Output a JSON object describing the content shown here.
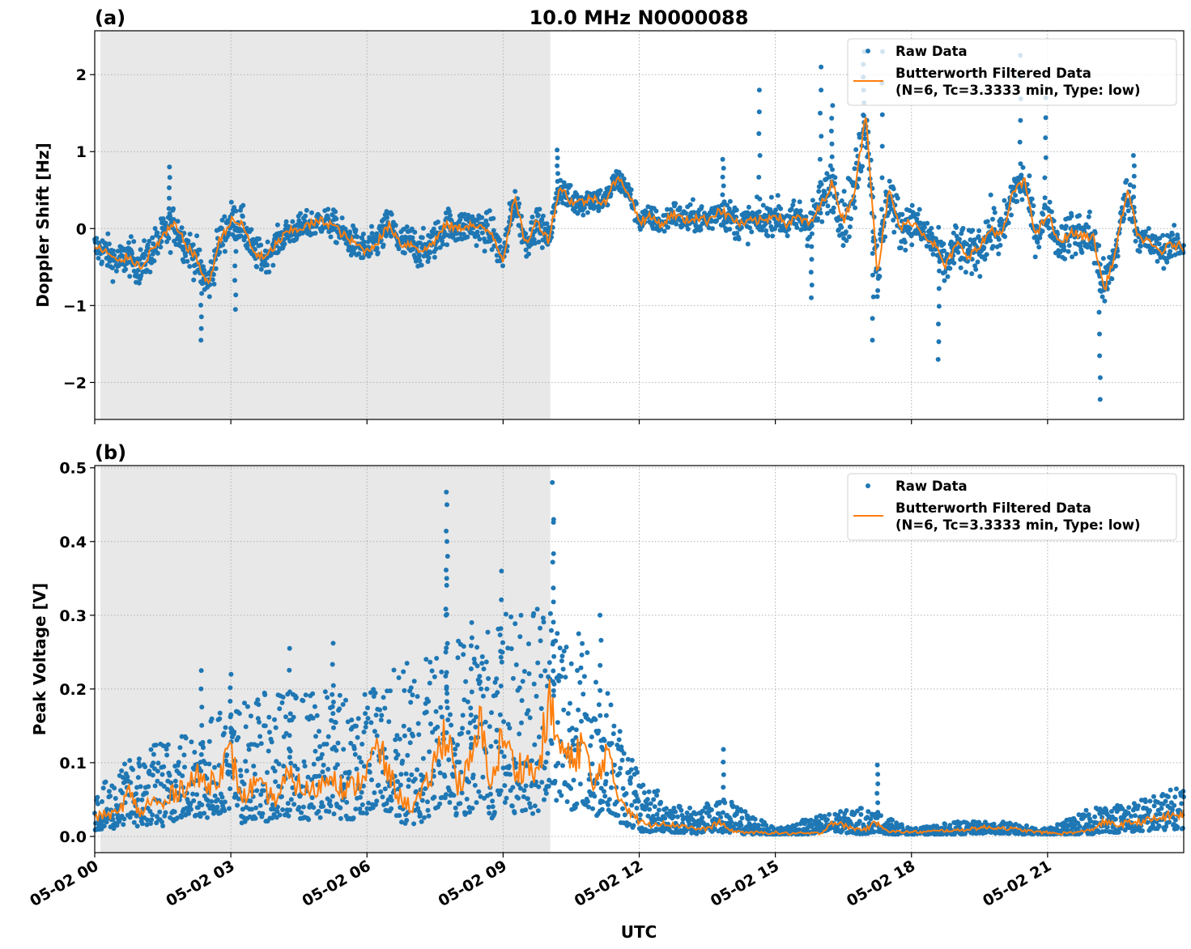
{
  "chart_data": [
    {
      "panel_label": "(a)",
      "title": "10.0 MHz N0000088",
      "type": "scatter+line",
      "xlabel": "",
      "ylabel": "Doppler Shift [Hz]",
      "x_unit": "hours UTC on 05-02",
      "xlim": [
        0,
        24
      ],
      "ylim": [
        -2.48,
        2.57
      ],
      "yticks": [
        -2,
        -1,
        0,
        1,
        2
      ],
      "ytick_labels": [
        "−2",
        "−1",
        "0",
        "1",
        "2"
      ],
      "grid": true,
      "legend_placement": "top-right",
      "shaded_region": {
        "x_start": 0.125,
        "x_end": 10.04,
        "color": "#e8e8e8"
      },
      "series": [
        {
          "name": "Raw Data",
          "kind": "scatter",
          "color": "#1f77b4",
          "spread_hourly": [
            0.3,
            0.35,
            0.35,
            0.35,
            0.25,
            0.25,
            0.3,
            0.35,
            0.3,
            0.35,
            0.25,
            0.25,
            0.2,
            0.25,
            0.3,
            0.3,
            0.4,
            0.6,
            0.35,
            0.4,
            0.45,
            0.3,
            0.5,
            0.3,
            0.25
          ],
          "outliers": [
            [
              1.65,
              0.8
            ],
            [
              2.35,
              -1.45
            ],
            [
              3.1,
              -1.05
            ],
            [
              14.65,
              1.8
            ],
            [
              16.0,
              2.1
            ],
            [
              16.25,
              1.6
            ],
            [
              16.95,
              2.3
            ],
            [
              17.15,
              -1.45
            ],
            [
              17.35,
              2.3
            ],
            [
              18.6,
              -1.7
            ],
            [
              20.4,
              2.25
            ],
            [
              20.95,
              1.7
            ],
            [
              22.15,
              -2.22
            ],
            [
              22.9,
              0.95
            ],
            [
              10.2,
              1.02
            ],
            [
              13.85,
              0.9
            ],
            [
              15.8,
              -0.9
            ]
          ]
        },
        {
          "name": "Butterworth Filtered Data\n(N=6, Tc=3.3333 min, Type: low)",
          "kind": "line",
          "color": "#ff7f0e",
          "x_step_hours": 0.25,
          "values": [
            -0.25,
            -0.3,
            -0.45,
            -0.35,
            -0.5,
            -0.3,
            -0.1,
            0.05,
            -0.2,
            -0.4,
            -0.75,
            -0.15,
            0.1,
            0.05,
            -0.3,
            -0.4,
            -0.2,
            -0.05,
            0.0,
            0.05,
            0.1,
            0.05,
            -0.1,
            -0.2,
            -0.3,
            -0.15,
            0.05,
            -0.2,
            -0.2,
            -0.3,
            -0.15,
            0.05,
            0.0,
            0.05,
            0.0,
            -0.05,
            -0.4,
            0.4,
            -0.2,
            0.1,
            -0.15,
            0.55,
            0.35,
            0.35,
            0.4,
            0.35,
            0.65,
            0.5,
            0.1,
            0.15,
            0.05,
            0.2,
            0.1,
            0.15,
            0.1,
            0.25,
            0.15,
            0.05,
            0.1,
            0.1,
            0.2,
            0.05,
            0.15,
            0.05,
            0.3,
            0.6,
            0.1,
            0.5,
            1.5,
            -0.6,
            0.5,
            0.0,
            0.1,
            -0.05,
            -0.2,
            -0.5,
            -0.2,
            -0.35,
            -0.25,
            0.0,
            -0.1,
            0.5,
            0.6,
            -0.1,
            0.2,
            -0.2,
            -0.05,
            -0.1,
            -0.1,
            -0.8,
            -0.3,
            0.5,
            -0.1,
            -0.2,
            -0.3,
            -0.2,
            -0.25
          ]
        }
      ]
    },
    {
      "panel_label": "(b)",
      "title": "",
      "type": "scatter+line",
      "xlabel": "UTC",
      "ylabel": "Peak Voltage [V]",
      "xlim": [
        0,
        24
      ],
      "ylim": [
        -0.022,
        0.503
      ],
      "yticks": [
        0.0,
        0.1,
        0.2,
        0.3,
        0.4,
        0.5
      ],
      "ytick_labels": [
        "0.0",
        "0.1",
        "0.2",
        "0.3",
        "0.4",
        "0.5"
      ],
      "xticks": [
        0,
        3,
        6,
        9,
        12,
        15,
        18,
        21
      ],
      "xtick_labels": [
        "05-02 00",
        "05-02 03",
        "05-02 06",
        "05-02 09",
        "05-02 12",
        "05-02 15",
        "05-02 18",
        "05-02 21"
      ],
      "grid": true,
      "legend_placement": "top-right",
      "shaded_region": {
        "x_start": 0.125,
        "x_end": 10.04,
        "color": "#e8e8e8"
      },
      "series": [
        {
          "name": "Raw Data",
          "kind": "scatter",
          "color": "#1f77b4",
          "upper_hourly": [
            0.06,
            0.12,
            0.15,
            0.18,
            0.2,
            0.2,
            0.2,
            0.25,
            0.28,
            0.3,
            0.35,
            0.25,
            0.08,
            0.04,
            0.05,
            0.01,
            0.03,
            0.04,
            0.01,
            0.02,
            0.02,
            0.01,
            0.04,
            0.05,
            0.07
          ],
          "outliers": [
            [
              7.75,
              0.467
            ],
            [
              7.75,
              0.45
            ],
            [
              7.77,
              0.38
            ],
            [
              8.95,
              0.36
            ],
            [
              10.1,
              0.48
            ],
            [
              10.12,
              0.43
            ],
            [
              11.15,
              0.3
            ],
            [
              13.85,
              0.118
            ],
            [
              17.25,
              0.097
            ],
            [
              2.35,
              0.225
            ],
            [
              3.0,
              0.22
            ],
            [
              4.3,
              0.255
            ],
            [
              5.25,
              0.262
            ],
            [
              8.3,
              0.29
            ]
          ]
        },
        {
          "name": "Butterworth Filtered Data\n(N=6, Tc=3.3333 min, Type: low)",
          "kind": "line",
          "color": "#ff7f0e",
          "x_step_hours": 0.25,
          "values": [
            0.025,
            0.03,
            0.03,
            0.06,
            0.03,
            0.05,
            0.04,
            0.06,
            0.07,
            0.08,
            0.07,
            0.09,
            0.11,
            0.05,
            0.07,
            0.06,
            0.05,
            0.08,
            0.07,
            0.06,
            0.07,
            0.09,
            0.06,
            0.07,
            0.09,
            0.12,
            0.08,
            0.05,
            0.04,
            0.06,
            0.1,
            0.15,
            0.07,
            0.09,
            0.15,
            0.07,
            0.14,
            0.09,
            0.1,
            0.08,
            0.18,
            0.12,
            0.1,
            0.13,
            0.06,
            0.12,
            0.06,
            0.04,
            0.02,
            0.015,
            0.02,
            0.015,
            0.015,
            0.01,
            0.01,
            0.02,
            0.008,
            0.006,
            0.005,
            0.005,
            0.005,
            0.004,
            0.004,
            0.004,
            0.004,
            0.02,
            0.015,
            0.01,
            0.01,
            0.02,
            0.007,
            0.006,
            0.006,
            0.006,
            0.007,
            0.008,
            0.008,
            0.01,
            0.012,
            0.012,
            0.012,
            0.01,
            0.008,
            0.006,
            0.005,
            0.004,
            0.005,
            0.006,
            0.01,
            0.02,
            0.015,
            0.018,
            0.02,
            0.022,
            0.025,
            0.028,
            0.03
          ]
        }
      ]
    }
  ]
}
